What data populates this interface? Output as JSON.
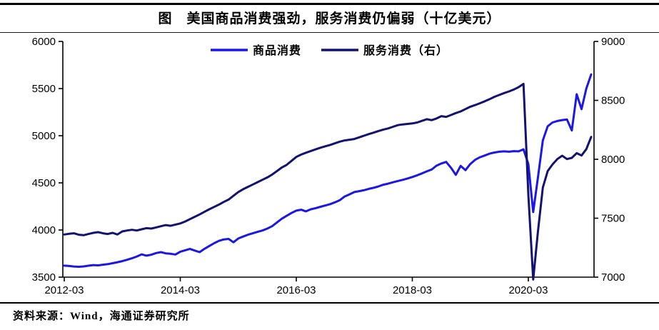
{
  "title": "图　美国商品消费强劲，服务消费仍偏弱（十亿美元）",
  "source": "资料来源：Wind，海通证券研究所",
  "colors": {
    "goods_line": "#1a17e8",
    "services_line": "#121270",
    "axis": "#000000",
    "rule": "#000000"
  },
  "chart_data": {
    "type": "line",
    "title": "美国商品消费强劲，服务消费仍偏弱（十亿美元）",
    "x_start": "2012-03",
    "x_end": "2021-04",
    "x_interval": "monthly",
    "x_ticks": [
      "2012-03",
      "2014-03",
      "2016-03",
      "2018-03",
      "2020-03"
    ],
    "x_tick_month_index": [
      0,
      24,
      48,
      72,
      96
    ],
    "grid": false,
    "legend_position": "top-center",
    "y_left": {
      "ticks": [
        "3500",
        "4000",
        "4500",
        "5000",
        "5500",
        "6000"
      ],
      "range": [
        3500,
        6000
      ]
    },
    "y_right": {
      "ticks": [
        "7000",
        "7500",
        "8000",
        "8500",
        "9000"
      ],
      "range": [
        7000,
        9000
      ]
    },
    "series": [
      {
        "name": "商品消费",
        "axis": "left",
        "color": "#1a17e8",
        "values": [
          3622,
          3618,
          3613,
          3610,
          3614,
          3621,
          3628,
          3625,
          3632,
          3638,
          3648,
          3658,
          3670,
          3684,
          3700,
          3719,
          3742,
          3728,
          3738,
          3755,
          3765,
          3752,
          3748,
          3740,
          3770,
          3785,
          3800,
          3782,
          3765,
          3800,
          3830,
          3860,
          3885,
          3900,
          3905,
          3870,
          3910,
          3930,
          3950,
          3965,
          3980,
          3995,
          4015,
          4040,
          4080,
          4120,
          4150,
          4180,
          4205,
          4215,
          4198,
          4220,
          4232,
          4246,
          4260,
          4274,
          4294,
          4316,
          4355,
          4378,
          4402,
          4412,
          4422,
          4436,
          4448,
          4462,
          4480,
          4492,
          4506,
          4520,
          4532,
          4546,
          4562,
          4580,
          4600,
          4622,
          4642,
          4682,
          4705,
          4722,
          4660,
          4585,
          4680,
          4635,
          4700,
          4745,
          4772,
          4790,
          4810,
          4822,
          4830,
          4834,
          4830,
          4836,
          4834,
          4856,
          4700,
          4190,
          4560,
          4950,
          5100,
          5140,
          5156,
          5166,
          5172,
          5056,
          5440,
          5282,
          5500,
          5650
        ]
      },
      {
        "name": "服务消费（右）",
        "axis": "right",
        "color": "#121270",
        "values": [
          7362,
          7368,
          7372,
          7360,
          7356,
          7366,
          7376,
          7382,
          7372,
          7366,
          7376,
          7362,
          7388,
          7396,
          7402,
          7396,
          7406,
          7416,
          7412,
          7422,
          7432,
          7442,
          7436,
          7446,
          7456,
          7472,
          7492,
          7512,
          7532,
          7554,
          7576,
          7596,
          7616,
          7638,
          7658,
          7690,
          7722,
          7746,
          7766,
          7786,
          7806,
          7826,
          7846,
          7870,
          7900,
          7930,
          7952,
          7986,
          8020,
          8040,
          8056,
          8070,
          8084,
          8098,
          8110,
          8122,
          8136,
          8150,
          8160,
          8166,
          8172,
          8186,
          8200,
          8214,
          8226,
          8240,
          8252,
          8262,
          8276,
          8290,
          8296,
          8300,
          8304,
          8312,
          8326,
          8340,
          8332,
          8346,
          8366,
          8360,
          8376,
          8392,
          8406,
          8426,
          8446,
          8460,
          8476,
          8492,
          8510,
          8530,
          8546,
          8562,
          8576,
          8592,
          8612,
          8640,
          7700,
          6980,
          7390,
          7760,
          7900,
          7956,
          8002,
          8030,
          8002,
          8012,
          8052,
          8032,
          8086,
          8190
        ]
      }
    ]
  }
}
